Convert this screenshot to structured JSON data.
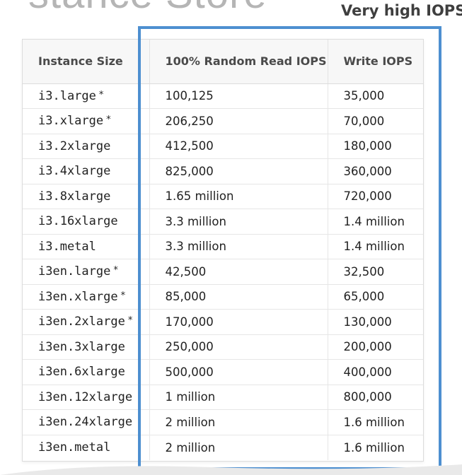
{
  "slide": {
    "title_fragment": "stance Store",
    "callout": "Very high IOPS"
  },
  "colors": {
    "highlight_border": "#4d8fd0",
    "header_bg": "#f7f7f7",
    "title_gray": "#b5b5b5"
  },
  "table": {
    "headers": [
      "Instance Size",
      "100% Random Read IOPS",
      "Write IOPS"
    ],
    "rows": [
      {
        "instance": "i3.large",
        "star": "*",
        "read": "100,125",
        "write": "35,000"
      },
      {
        "instance": "i3.xlarge",
        "star": "*",
        "read": "206,250",
        "write": "70,000"
      },
      {
        "instance": "i3.2xlarge",
        "star": "",
        "read": "412,500",
        "write": "180,000"
      },
      {
        "instance": "i3.4xlarge",
        "star": "",
        "read": "825,000",
        "write": "360,000"
      },
      {
        "instance": "i3.8xlarge",
        "star": "",
        "read": "1.65 million",
        "write": "720,000"
      },
      {
        "instance": "i3.16xlarge",
        "star": "",
        "read": "3.3 million",
        "write": "1.4 million"
      },
      {
        "instance": "i3.metal",
        "star": "",
        "read": "3.3 million",
        "write": "1.4 million"
      },
      {
        "instance": "i3en.large",
        "star": "*",
        "read": "42,500",
        "write": "32,500"
      },
      {
        "instance": "i3en.xlarge",
        "star": "*",
        "read": "85,000",
        "write": "65,000"
      },
      {
        "instance": "i3en.2xlarge",
        "star": "*",
        "read": "170,000",
        "write": "130,000"
      },
      {
        "instance": "i3en.3xlarge",
        "star": "",
        "read": "250,000",
        "write": "200,000"
      },
      {
        "instance": "i3en.6xlarge",
        "star": "",
        "read": "500,000",
        "write": "400,000"
      },
      {
        "instance": "i3en.12xlarge",
        "star": "",
        "read": "1 million",
        "write": "800,000"
      },
      {
        "instance": "i3en.24xlarge",
        "star": "",
        "read": "2 million",
        "write": "1.6 million"
      },
      {
        "instance": "i3en.metal",
        "star": "",
        "read": "2 million",
        "write": "1.6 million"
      }
    ]
  }
}
